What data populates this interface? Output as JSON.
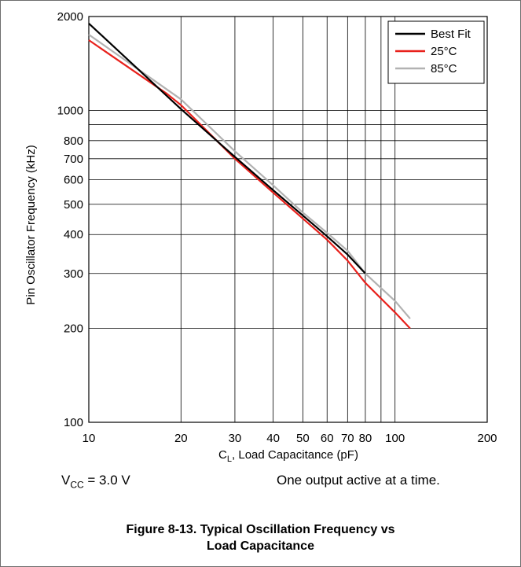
{
  "chart_data": {
    "type": "line",
    "xscale": "log",
    "yscale": "log",
    "xlim": [
      10,
      200
    ],
    "ylim": [
      100,
      2000
    ],
    "grid": true,
    "legend_position": "top-right",
    "xlabel_main": "C",
    "xlabel_sub": "L",
    "xlabel_rest": ", Load Capacitance (pF)",
    "ylabel": "Pin Oscillator Frequency (kHz)",
    "x_ticks": [
      10,
      20,
      30,
      40,
      50,
      60,
      70,
      80,
      100,
      200
    ],
    "x_tick_labels": [
      "10",
      "20",
      "30",
      "40",
      "50",
      "60",
      "70",
      "80",
      "100",
      "200"
    ],
    "x_grid": [
      10,
      20,
      30,
      40,
      50,
      60,
      70,
      80,
      90,
      100,
      200
    ],
    "y_ticks": [
      100,
      200,
      300,
      400,
      500,
      600,
      700,
      800,
      1000,
      2000
    ],
    "y_tick_labels": [
      "100",
      "200",
      "300",
      "400",
      "500",
      "600",
      "700",
      "800",
      "1000",
      "2000"
    ],
    "y_grid": [
      100,
      200,
      300,
      400,
      500,
      600,
      700,
      800,
      900,
      1000,
      2000
    ],
    "series": [
      {
        "name": "Best Fit",
        "color": "#000000",
        "x": [
          10,
          20,
          30,
          40,
          50,
          60,
          70,
          80
        ],
        "y": [
          1900,
          1010,
          710,
          555,
          460,
          395,
          345,
          300
        ]
      },
      {
        "name": "25°C",
        "color": "#e8211c",
        "x": [
          10,
          18,
          20,
          30,
          40,
          50,
          60,
          70,
          80,
          100,
          112
        ],
        "y": [
          1680,
          1130,
          1040,
          700,
          545,
          450,
          385,
          330,
          280,
          225,
          200
        ]
      },
      {
        "name": "85°C",
        "color": "#b2b2b2",
        "x": [
          10,
          20,
          30,
          40,
          50,
          60,
          70,
          80,
          100,
          112
        ],
        "y": [
          1750,
          1085,
          740,
          575,
          470,
          405,
          355,
          300,
          245,
          215
        ]
      }
    ]
  },
  "notes": {
    "vcc_main": "V",
    "vcc_sub": "CC",
    "vcc_rest": " = 3.0 V",
    "output": "One output active at a time."
  },
  "caption": {
    "line1": "Figure 8-13. Typical Oscillation Frequency vs",
    "line2": "Load Capacitance"
  }
}
